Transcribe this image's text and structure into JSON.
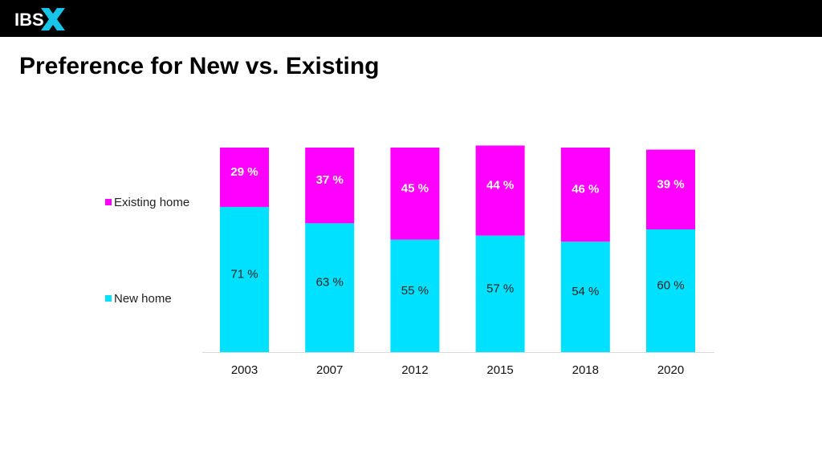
{
  "header": {
    "logo_text": "IBS",
    "logo_mark": "X",
    "logo_mark_color": "#18c4e8",
    "background": "#000000"
  },
  "page": {
    "title": "Preference for New vs. Existing"
  },
  "chart_data": {
    "type": "bar",
    "stacked": true,
    "categories": [
      "2003",
      "2007",
      "2012",
      "2015",
      "2018",
      "2020"
    ],
    "series": [
      {
        "name": "New home",
        "color": "#00e0ff",
        "values": [
          71,
          63,
          55,
          57,
          54,
          60
        ],
        "labels": [
          "71 %",
          "63 %",
          "55 %",
          "57 %",
          "54 %",
          "60 %"
        ],
        "label_color": "#222222"
      },
      {
        "name": "Existing home",
        "color": "#ff00ff",
        "values": [
          29,
          37,
          45,
          44,
          46,
          39
        ],
        "labels": [
          "29 %",
          "37 %",
          "45 %",
          "44 %",
          "46 %",
          "39 %"
        ],
        "label_color": "#ffffff"
      }
    ],
    "ylim": [
      0,
      100
    ],
    "grid": false,
    "legend_position": "left",
    "title": "",
    "xlabel": "",
    "ylabel": ""
  }
}
